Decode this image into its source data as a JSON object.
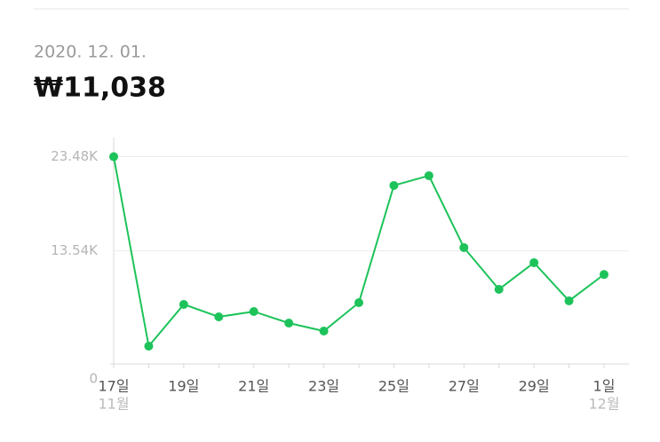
{
  "header": {
    "date": "2020. 12. 01.",
    "amount": "₩11,038"
  },
  "chart_data": {
    "type": "line",
    "categories": [
      "17일",
      null,
      "19일",
      null,
      "21일",
      null,
      "23일",
      null,
      "25일",
      null,
      "27일",
      null,
      "29일",
      null,
      "1일"
    ],
    "x_sublabels": [
      "11월",
      null,
      null,
      null,
      null,
      null,
      null,
      null,
      null,
      null,
      null,
      null,
      null,
      null,
      "12월"
    ],
    "series": [
      {
        "name": "price",
        "color": "#1dc35a",
        "values": [
          23480,
          3470,
          7877,
          6564,
          7127,
          5908,
          5064,
          8065,
          20443,
          21474,
          13878,
          9471,
          12284,
          8252,
          11038
        ]
      }
    ],
    "ylim": [
      0,
      25500
    ],
    "yticks": [
      0,
      {
        "value": 13540,
        "label": "13.54K"
      },
      {
        "value": 23480,
        "label": "23.48K"
      }
    ],
    "grid": true
  }
}
